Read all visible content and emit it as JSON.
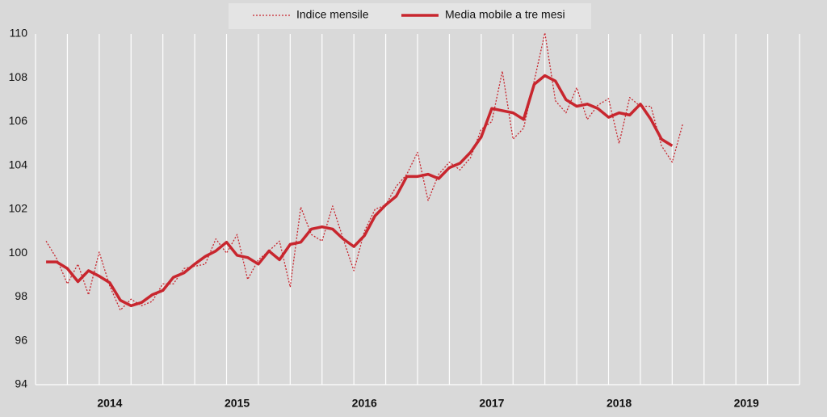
{
  "chart_data": {
    "type": "line",
    "x": [
      2014,
      2014.083,
      2014.167,
      2014.25,
      2014.333,
      2014.417,
      2014.5,
      2014.583,
      2014.667,
      2014.75,
      2014.833,
      2014.917,
      2015,
      2015.083,
      2015.167,
      2015.25,
      2015.333,
      2015.417,
      2015.5,
      2015.583,
      2015.667,
      2015.75,
      2015.833,
      2015.917,
      2016,
      2016.083,
      2016.167,
      2016.25,
      2016.333,
      2016.417,
      2016.5,
      2016.583,
      2016.667,
      2016.75,
      2016.833,
      2016.917,
      2017,
      2017.083,
      2017.167,
      2017.25,
      2017.333,
      2017.417,
      2017.5,
      2017.583,
      2017.667,
      2017.75,
      2017.833,
      2017.917,
      2018,
      2018.083,
      2018.167,
      2018.25,
      2018.333,
      2018.417,
      2018.5,
      2018.583,
      2018.667,
      2018.75,
      2018.833,
      2018.917,
      2019
    ],
    "series": [
      {
        "name": "Indice mensile",
        "color": "#c8262e",
        "style": "dotted",
        "values": [
          100.55,
          99.75,
          98.6,
          99.5,
          98.1,
          100.05,
          98.5,
          97.4,
          97.9,
          97.6,
          97.8,
          98.6,
          98.6,
          99.3,
          99.4,
          99.5,
          100.65,
          100.0,
          100.85,
          98.8,
          99.7,
          100.1,
          100.55,
          98.45,
          102.1,
          100.85,
          100.55,
          102.15,
          100.65,
          99.2,
          101.0,
          102.0,
          102.2,
          103.05,
          103.6,
          104.6,
          102.4,
          103.6,
          104.15,
          103.8,
          104.35,
          105.65,
          106.0,
          108.3,
          105.2,
          105.7,
          107.85,
          110.05,
          106.95,
          106.4,
          107.55,
          106.1,
          106.75,
          107.05,
          105.0,
          107.1,
          106.7,
          106.7,
          104.9,
          104.15,
          105.9
        ]
      },
      {
        "name": "Media mobile a tre mesi",
        "color": "#c8262e",
        "style": "solid",
        "values": [
          99.6,
          99.6,
          99.3,
          98.7,
          99.2,
          98.95,
          98.65,
          97.85,
          97.6,
          97.75,
          98.1,
          98.3,
          98.9,
          99.1,
          99.5,
          99.85,
          100.1,
          100.5,
          99.9,
          99.8,
          99.5,
          100.1,
          99.7,
          100.4,
          100.5,
          101.1,
          101.2,
          101.1,
          100.65,
          100.3,
          100.8,
          101.7,
          102.2,
          102.6,
          103.5,
          103.5,
          103.6,
          103.4,
          103.9,
          104.1,
          104.6,
          105.3,
          106.6,
          106.5,
          106.4,
          106.1,
          107.7,
          108.1,
          107.85,
          107.0,
          106.7,
          106.8,
          106.6,
          106.2,
          106.4,
          106.3,
          106.8,
          106.1,
          105.2,
          104.9,
          null
        ]
      }
    ],
    "xlim": [
      2013.917,
      2019.917
    ],
    "xticks": [
      {
        "value": 2014.5,
        "label": "2014"
      },
      {
        "value": 2015.5,
        "label": "2015"
      },
      {
        "value": 2016.5,
        "label": "2016"
      },
      {
        "value": 2017.5,
        "label": "2017"
      },
      {
        "value": 2018.5,
        "label": "2018"
      },
      {
        "value": 2019.5,
        "label": "2019"
      }
    ],
    "x_grid_step": 0.25,
    "ylim": [
      94,
      110
    ],
    "yticks": [
      94,
      96,
      98,
      100,
      102,
      104,
      106,
      108,
      110
    ],
    "legend": "top"
  }
}
